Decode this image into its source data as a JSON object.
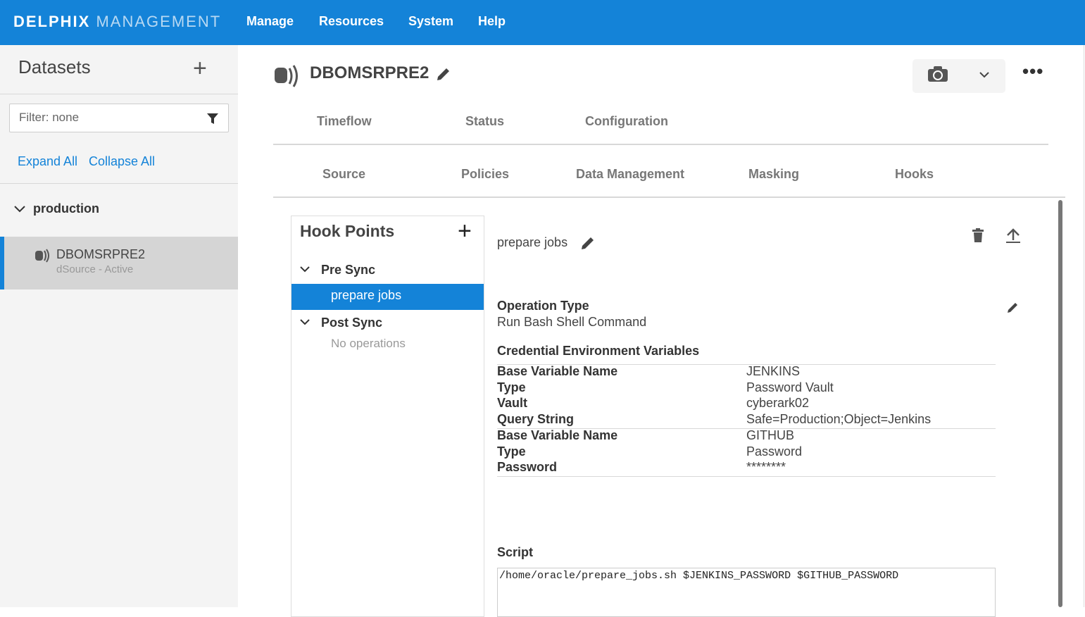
{
  "header": {
    "brand_bold": "DELPHIX",
    "brand_light": "MANAGEMENT",
    "nav": [
      "Manage",
      "Resources",
      "System",
      "Help"
    ]
  },
  "sidebar": {
    "title": "Datasets",
    "filter": "Filter: none",
    "expand_all": "Expand All",
    "collapse_all": "Collapse All",
    "group": "production",
    "dataset": {
      "name": "DBOMSRPRE2",
      "subtitle": "dSource - Active"
    }
  },
  "main": {
    "title": "DBOMSRPRE2",
    "tabs": [
      "Timeflow",
      "Status",
      "Configuration"
    ],
    "subtabs": [
      "Source",
      "Policies",
      "Data Management",
      "Masking",
      "Hooks"
    ],
    "hook_points": {
      "title": "Hook Points",
      "pre_sync": "Pre Sync",
      "pre_item": "prepare jobs",
      "post_sync": "Post Sync",
      "post_empty": "No operations"
    },
    "detail": {
      "name": "prepare jobs",
      "op_type_label": "Operation Type",
      "op_type": "Run Bash Shell Command",
      "cred_label": "Credential Environment Variables",
      "rows": [
        [
          "Base Variable Name",
          "JENKINS"
        ],
        [
          "Type",
          "Password Vault"
        ],
        [
          "Vault",
          "cyberark02"
        ],
        [
          "Query String",
          "Safe=Production;Object=Jenkins"
        ],
        [
          "Base Variable Name",
          "GITHUB"
        ],
        [
          "Type",
          "Password"
        ],
        [
          "Password",
          "********"
        ]
      ],
      "script_label": "Script",
      "script": "/home/oracle/prepare_jobs.sh $JENKINS_PASSWORD $GITHUB_PASSWORD"
    }
  },
  "colors": {
    "accent": "#1483d8"
  }
}
